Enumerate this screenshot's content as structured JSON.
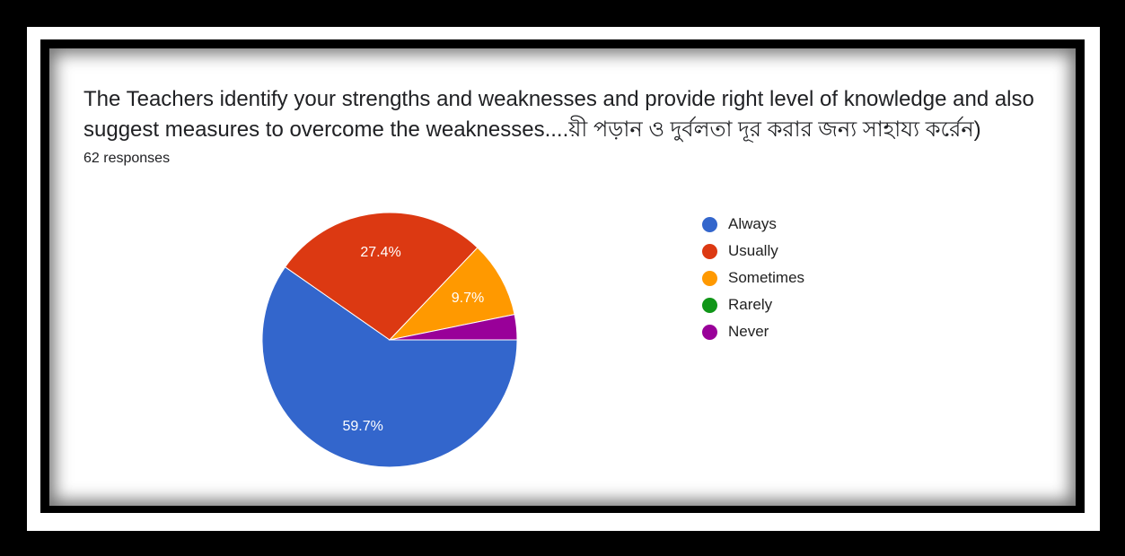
{
  "question": {
    "title": "The Teachers identify your strengths and weaknesses and provide right level of knowledge and also suggest measures to overcome the weaknesses....য়ী পড়ান ও দুর্বলতা দূর করার জন্য সাহায্য কর্রেন)",
    "responses": "62 responses"
  },
  "chart_data": {
    "type": "pie",
    "categories": [
      "Always",
      "Usually",
      "Sometimes",
      "Rarely",
      "Never"
    ],
    "values": [
      59.7,
      27.4,
      9.7,
      0,
      3.2
    ],
    "data_labels": [
      "59.7%",
      "27.4%",
      "9.7%",
      "",
      ""
    ],
    "colors": [
      "#3366cc",
      "#dc3912",
      "#ff9900",
      "#109618",
      "#990099"
    ],
    "legend_position": "right",
    "start_angle": "3 o'clock",
    "direction": "clockwise"
  }
}
